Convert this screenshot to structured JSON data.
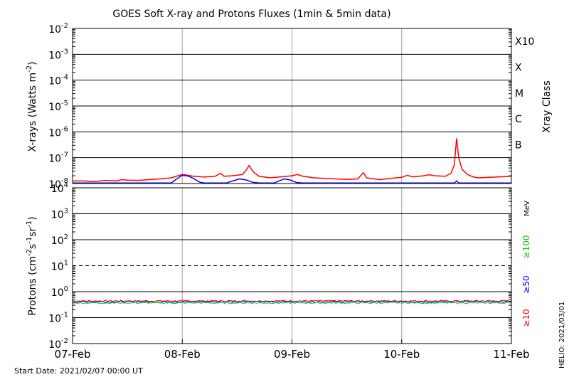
{
  "chart_data": [
    {
      "type": "line",
      "title": "GOES Soft X-ray and Protons Fluxes   (1min & 5min data)",
      "ylabel_main": "X-rays (Watts m",
      "ylabel_sup": "-2",
      "ylabel_close": ")",
      "yscale": "log",
      "ylim": [
        1e-08,
        0.01
      ],
      "y_tick_exponents": [
        -8,
        -7,
        -6,
        -5,
        -4,
        -3,
        -2
      ],
      "xlim_days": [
        0,
        4
      ],
      "right_axis_title": "Xray Class",
      "xray_classes": [
        {
          "label": "B",
          "exp": -7
        },
        {
          "label": "C",
          "exp": -6
        },
        {
          "label": "M",
          "exp": -5
        },
        {
          "label": "X",
          "exp": -4
        },
        {
          "label": "X10",
          "exp": -3
        }
      ],
      "series": [
        {
          "name": "",
          "color": "#ff0000",
          "points": [
            [
              0,
              -7.9
            ],
            [
              0.1,
              -7.9
            ],
            [
              0.2,
              -7.92
            ],
            [
              0.3,
              -7.88
            ],
            [
              0.4,
              -7.9
            ],
            [
              0.45,
              -7.85
            ],
            [
              0.5,
              -7.87
            ],
            [
              0.6,
              -7.88
            ],
            [
              0.7,
              -7.85
            ],
            [
              0.8,
              -7.82
            ],
            [
              0.9,
              -7.78
            ],
            [
              1.0,
              -7.65
            ],
            [
              1.05,
              -7.68
            ],
            [
              1.1,
              -7.72
            ],
            [
              1.2,
              -7.75
            ],
            [
              1.3,
              -7.72
            ],
            [
              1.35,
              -7.6
            ],
            [
              1.38,
              -7.72
            ],
            [
              1.45,
              -7.7
            ],
            [
              1.5,
              -7.68
            ],
            [
              1.55,
              -7.65
            ],
            [
              1.58,
              -7.5
            ],
            [
              1.61,
              -7.3
            ],
            [
              1.63,
              -7.45
            ],
            [
              1.66,
              -7.6
            ],
            [
              1.7,
              -7.72
            ],
            [
              1.8,
              -7.78
            ],
            [
              1.9,
              -7.74
            ],
            [
              2.0,
              -7.7
            ],
            [
              2.05,
              -7.65
            ],
            [
              2.1,
              -7.72
            ],
            [
              2.2,
              -7.78
            ],
            [
              2.3,
              -7.8
            ],
            [
              2.4,
              -7.82
            ],
            [
              2.5,
              -7.84
            ],
            [
              2.6,
              -7.82
            ],
            [
              2.65,
              -7.58
            ],
            [
              2.68,
              -7.78
            ],
            [
              2.75,
              -7.82
            ],
            [
              2.8,
              -7.85
            ],
            [
              2.9,
              -7.8
            ],
            [
              3.0,
              -7.76
            ],
            [
              3.05,
              -7.68
            ],
            [
              3.1,
              -7.74
            ],
            [
              3.2,
              -7.7
            ],
            [
              3.25,
              -7.66
            ],
            [
              3.3,
              -7.7
            ],
            [
              3.4,
              -7.72
            ],
            [
              3.45,
              -7.6
            ],
            [
              3.48,
              -7.28
            ],
            [
              3.5,
              -6.25
            ],
            [
              3.52,
              -7.0
            ],
            [
              3.55,
              -7.45
            ],
            [
              3.6,
              -7.65
            ],
            [
              3.65,
              -7.74
            ],
            [
              3.7,
              -7.78
            ],
            [
              3.8,
              -7.76
            ],
            [
              3.9,
              -7.74
            ],
            [
              4.0,
              -7.72
            ]
          ]
        },
        {
          "name": "",
          "color": "#0000ff",
          "points": [
            [
              0,
              -7.98
            ],
            [
              0.9,
              -7.98
            ],
            [
              0.94,
              -7.85
            ],
            [
              1.0,
              -7.68
            ],
            [
              1.06,
              -7.72
            ],
            [
              1.1,
              -7.8
            ],
            [
              1.16,
              -7.95
            ],
            [
              1.2,
              -7.98
            ],
            [
              1.4,
              -7.98
            ],
            [
              1.46,
              -7.9
            ],
            [
              1.52,
              -7.82
            ],
            [
              1.58,
              -7.86
            ],
            [
              1.64,
              -7.95
            ],
            [
              1.7,
              -7.98
            ],
            [
              1.84,
              -7.98
            ],
            [
              1.88,
              -7.9
            ],
            [
              1.93,
              -7.82
            ],
            [
              1.98,
              -7.86
            ],
            [
              2.04,
              -7.96
            ],
            [
              2.1,
              -7.98
            ],
            [
              3.48,
              -7.98
            ],
            [
              3.5,
              -7.9
            ],
            [
              3.52,
              -7.98
            ],
            [
              4.0,
              -7.98
            ]
          ]
        }
      ]
    },
    {
      "type": "line",
      "ylabel_main": "Protons (cm",
      "ylabel_sup1": "-2",
      "ylabel_mid1": "s",
      "ylabel_sup2": "-1",
      "ylabel_mid2": "sr",
      "ylabel_sup3": "-1",
      "ylabel_close": ")",
      "yscale": "log",
      "ylim": [
        0.01,
        10000
      ],
      "y_tick_exponents": [
        -2,
        -1,
        0,
        1,
        2,
        3,
        4
      ],
      "xlim_days": [
        0,
        4
      ],
      "x_ticks": [
        "07-Feb",
        "08-Feb",
        "09-Feb",
        "10-Feb",
        "11-Feb"
      ],
      "threshold_level": 10,
      "unit_label": "MeV",
      "series": [
        {
          "name": "≥100",
          "color": "#00cc00",
          "approx_value": 0.37
        },
        {
          "name": "≥50",
          "color": "#0000ff",
          "approx_value": 0.41
        },
        {
          "name": "≥10",
          "color": "#ff0000",
          "approx_value": 0.44
        }
      ]
    }
  ],
  "footer": {
    "start_date": "Start Date: 2021/02/07 00:00 UT",
    "credit": "HELIO: 2021/03/01"
  },
  "colors": {
    "grid": "#a0a0a0",
    "axis": "#000000"
  }
}
